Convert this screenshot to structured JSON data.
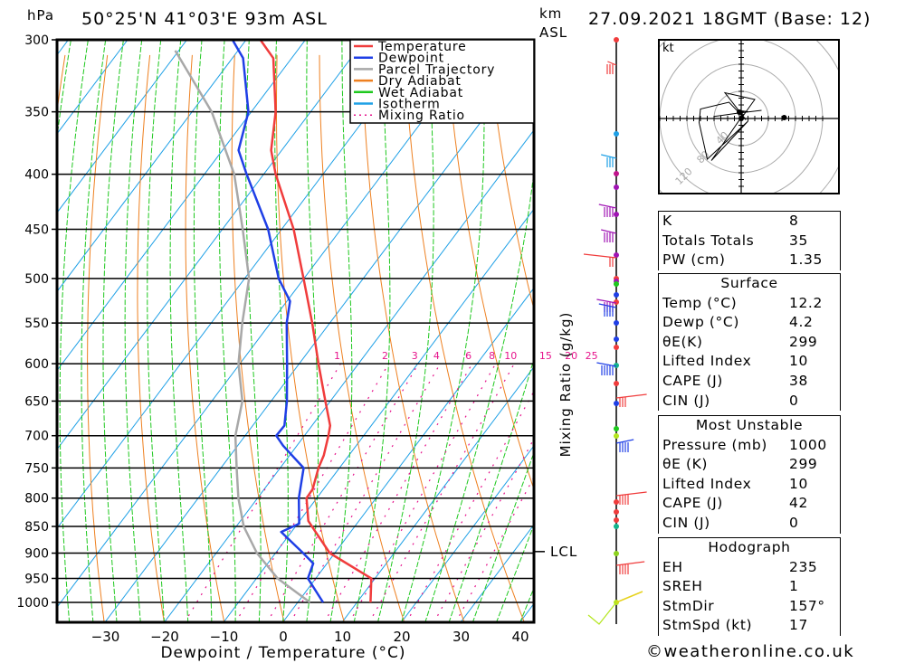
{
  "header": {
    "pressure_unit": "hPa",
    "location": "50°25'N  41°03'E  93m  ASL",
    "height_unit_line1": "km",
    "height_unit_line2": "ASL",
    "datetime": "27.09.2021  18GMT  (Base: 12)"
  },
  "footer": {
    "copyright": "©weatheronline.co.uk"
  },
  "chart_data": [
    {
      "type": "line",
      "title": "Skew-T log-P sounding",
      "xlabel": "Dewpoint / Temperature (°C)",
      "ylabel": "hPa",
      "right_label": "Mixing Ratio (g/kg)",
      "x_ticks": [
        -30,
        -20,
        -10,
        0,
        10,
        20,
        30,
        40
      ],
      "y_ticks": [
        300,
        350,
        400,
        450,
        500,
        550,
        600,
        650,
        700,
        750,
        800,
        850,
        900,
        950,
        1000
      ],
      "ylim": [
        1045,
        300
      ],
      "xlim": [
        -38,
        42
      ],
      "grid": true,
      "legend_position": "top-right",
      "legend": [
        {
          "label": "Temperature",
          "color": "#f03c3c"
        },
        {
          "label": "Dewpoint",
          "color": "#1f3fe6"
        },
        {
          "label": "Parcel Trajectory",
          "color": "#a8a8a8"
        },
        {
          "label": "Dry Adiabat",
          "color": "#ee8020"
        },
        {
          "label": "Wet Adiabat",
          "color": "#1ec81e"
        },
        {
          "label": "Isotherm",
          "color": "#1ea0e6"
        },
        {
          "label": "Mixing Ratio",
          "color": "#e6148c"
        }
      ],
      "mixing_ratio_labels": [
        "1",
        "2",
        "3",
        "4",
        "6",
        "8",
        "10",
        "15",
        "20",
        "25"
      ],
      "lcl_label": "LCL",
      "lcl_pressure": 897,
      "series": [
        {
          "name": "Temperature",
          "pressure": [
            300,
            312,
            350,
            380,
            400,
            450,
            500,
            550,
            600,
            650,
            685,
            700,
            730,
            750,
            785,
            800,
            840,
            860,
            900,
            950,
            1000
          ],
          "values": [
            -77.6,
            -73.1,
            -65.9,
            -61.8,
            -58.0,
            -48.0,
            -40.1,
            -33.0,
            -26.8,
            -20.9,
            -17.0,
            -16.0,
            -14.3,
            -13.6,
            -11.9,
            -11.8,
            -8.6,
            -6.0,
            -0.9,
            9.3,
            12.2
          ]
        },
        {
          "name": "Dewpoint",
          "pressure": [
            300,
            312,
            350,
            380,
            400,
            450,
            500,
            525,
            550,
            600,
            650,
            685,
            700,
            715,
            750,
            800,
            845,
            860,
            900,
            920,
            950,
            1000
          ],
          "values": [
            -82.3,
            -78.2,
            -70.5,
            -67.3,
            -62.9,
            -52.3,
            -44.3,
            -39.5,
            -37.3,
            -32.1,
            -27.4,
            -24.7,
            -24.8,
            -22.4,
            -16.1,
            -13.1,
            -9.8,
            -11.8,
            -5.4,
            -2.4,
            -1.4,
            4.2
          ]
        },
        {
          "name": "Parcel Trajectory",
          "pressure": [
            307,
            350,
            400,
            450,
            500,
            550,
            600,
            650,
            700,
            750,
            800,
            850,
            900,
            950,
            1000
          ],
          "values": [
            -90.6,
            -76.7,
            -65.0,
            -56.6,
            -49.3,
            -44.8,
            -40.3,
            -34.9,
            -31.7,
            -27.4,
            -23.3,
            -18.8,
            -13.2,
            -6.5,
            2.0
          ]
        }
      ]
    },
    {
      "type": "scatter",
      "title": "Hodograph",
      "unit_label": "kt",
      "ring_labels": [
        "40",
        "80",
        "120"
      ],
      "points_u_v": [
        [
          30,
          12
        ],
        [
          -4,
          8
        ],
        [
          -2,
          2
        ],
        [
          0,
          0
        ],
        [
          20,
          28
        ],
        [
          -24,
          38
        ],
        [
          7,
          -2
        ],
        [
          -18,
          24
        ],
        [
          -60,
          14
        ],
        [
          -62,
          -6
        ],
        [
          -50,
          -60
        ],
        [
          10,
          -4
        ],
        [
          -44,
          -62
        ],
        [
          -30,
          -42
        ],
        [
          3,
          6
        ],
        [
          -5,
          12
        ],
        [
          10,
          10
        ],
        [
          -40,
          3
        ]
      ]
    }
  ],
  "wind_profile": {
    "altitude_dots": [
      {
        "color": "#f03c3c"
      },
      {
        "color": "#1ea0e6"
      },
      {
        "color": "#c0148c"
      },
      {
        "color": "#a014b4"
      },
      {
        "color": "#a014b4"
      },
      {
        "color": "#a014b4"
      },
      {
        "color": "#f03c3c"
      },
      {
        "color": "#a014b4"
      },
      {
        "color": "#1ec81e"
      },
      {
        "color": "#1f3fe6"
      },
      {
        "color": "#f03c3c"
      },
      {
        "color": "#1f3fe6"
      },
      {
        "color": "#1f3fe6"
      },
      {
        "color": "#f03c3c"
      },
      {
        "color": "#14b48c"
      },
      {
        "color": "#f03c3c"
      },
      {
        "color": "#1f3fe6"
      },
      {
        "color": "#1ec81e"
      },
      {
        "color": "#b4e61e"
      },
      {
        "color": "#f03c3c"
      },
      {
        "color": "#f03c3c"
      },
      {
        "color": "#f03c3c"
      },
      {
        "color": "#14b48c"
      },
      {
        "color": "#8cd21e"
      },
      {
        "color": "#b4e61e"
      }
    ]
  },
  "indices": {
    "general": [
      {
        "label": "K",
        "value": "8"
      },
      {
        "label": "Totals Totals",
        "value": "35"
      },
      {
        "label": "PW (cm)",
        "value": "1.35"
      }
    ],
    "surface": {
      "title": "Surface",
      "rows": [
        {
          "label": "Temp (°C)",
          "value": "12.2"
        },
        {
          "label": "Dewp (°C)",
          "value": "4.2"
        },
        {
          "label": "θE(K)",
          "value": "299"
        },
        {
          "label": "Lifted Index",
          "value": "10"
        },
        {
          "label": "CAPE (J)",
          "value": "38"
        },
        {
          "label": "CIN (J)",
          "value": "0"
        }
      ]
    },
    "most_unstable": {
      "title": "Most Unstable",
      "rows": [
        {
          "label": "Pressure (mb)",
          "value": "1000"
        },
        {
          "label": "θE (K)",
          "value": "299"
        },
        {
          "label": "Lifted Index",
          "value": "10"
        },
        {
          "label": "CAPE (J)",
          "value": "42"
        },
        {
          "label": "CIN (J)",
          "value": "0"
        }
      ]
    },
    "hodograph": {
      "title": "Hodograph",
      "rows": [
        {
          "label": "EH",
          "value": "235"
        },
        {
          "label": "SREH",
          "value": "1"
        },
        {
          "label": "StmDir",
          "value": "157°"
        },
        {
          "label": "StmSpd (kt)",
          "value": "17"
        }
      ]
    }
  }
}
